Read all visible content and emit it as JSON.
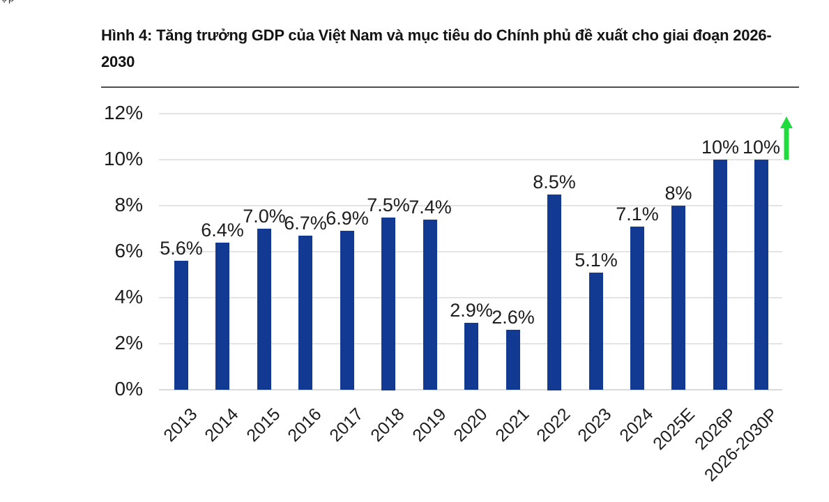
{
  "page": {
    "corner_fragment": "ợp"
  },
  "figure": {
    "title_lines": [
      "Hình 4: Tăng trưởng GDP của Việt Nam và mục tiêu do Chính phủ đề xuất cho giai đoạn 2026-",
      "2030"
    ]
  },
  "chart_data": {
    "type": "bar",
    "title": "Hình 4: Tăng trưởng GDP của Việt Nam và mục tiêu do Chính phủ đề xuất cho giai đoạn 2026-2030",
    "categories": [
      "2013",
      "2014",
      "2015",
      "2016",
      "2017",
      "2018",
      "2019",
      "2020",
      "2021",
      "2022",
      "2023",
      "2024",
      "2025E",
      "2026P",
      "2026-2030P"
    ],
    "values": [
      5.6,
      6.4,
      7.0,
      6.7,
      6.9,
      7.5,
      7.4,
      2.9,
      2.6,
      8.5,
      5.1,
      7.1,
      8,
      10,
      10
    ],
    "value_labels": [
      "5.6%",
      "6.4%",
      "7.0%",
      "6.7%",
      "6.9%",
      "7.5%",
      "7.4%",
      "2.9%",
      "2.6%",
      "8.5%",
      "5.1%",
      "7.1%",
      "8%",
      "10%",
      "10%"
    ],
    "xlabel": "",
    "ylabel": "",
    "ylim": [
      0,
      12
    ],
    "ytick_step": 2,
    "ytick_labels": [
      "0%",
      "2%",
      "4%",
      "6%",
      "8%",
      "10%",
      "12%"
    ],
    "grid": true,
    "legend": "none",
    "bar_color": "#123a93",
    "annotation": {
      "type": "up-arrow",
      "color": "#1fdb3c",
      "position": "right-of-last-bar",
      "meaning": "growth-target-increase"
    }
  }
}
